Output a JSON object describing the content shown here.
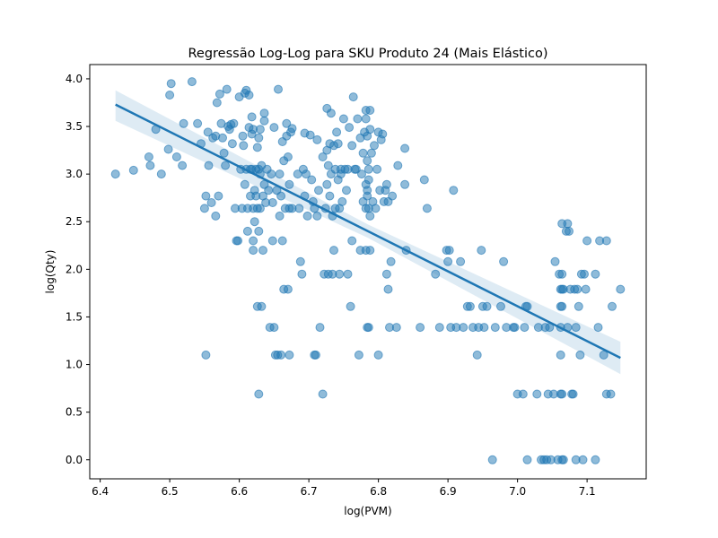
{
  "chart_data": {
    "type": "scatter",
    "title": "Regressão Log-Log para SKU Produto 24 (Mais Elástico)",
    "xlabel": "log(PVM)",
    "ylabel": "log(Qty)",
    "xlim": [
      6.385,
      7.185
    ],
    "ylim": [
      -0.2,
      4.15
    ],
    "xticks": [
      6.4,
      6.5,
      6.6,
      6.7,
      6.8,
      6.9,
      7.0,
      7.1
    ],
    "xtick_labels": [
      "6.4",
      "6.5",
      "6.6",
      "6.7",
      "6.8",
      "6.9",
      "7.0",
      "7.1"
    ],
    "yticks": [
      0.0,
      0.5,
      1.0,
      1.5,
      2.0,
      2.5,
      3.0,
      3.5,
      4.0
    ],
    "ytick_labels": [
      "0.0",
      "0.5",
      "1.0",
      "1.5",
      "2.0",
      "2.5",
      "3.0",
      "3.5",
      "4.0"
    ],
    "grid": false,
    "point_color": "#1f77b4",
    "line_color": "#1f77b4",
    "regression": {
      "x": [
        6.422,
        7.148
      ],
      "y": [
        3.73,
        1.07
      ],
      "ci_start": [
        3.56,
        3.88
      ],
      "ci_end": [
        0.9,
        1.24
      ],
      "ci_mid": [
        2.33,
        2.47
      ]
    },
    "points": [
      [
        6.422,
        3.0
      ],
      [
        6.448,
        3.04
      ],
      [
        6.47,
        3.18
      ],
      [
        6.472,
        3.09
      ],
      [
        6.48,
        3.47
      ],
      [
        6.488,
        3.0
      ],
      [
        6.498,
        3.26
      ],
      [
        6.5,
        3.83
      ],
      [
        6.502,
        3.95
      ],
      [
        6.51,
        3.18
      ],
      [
        6.518,
        3.09
      ],
      [
        6.52,
        3.53
      ],
      [
        6.532,
        3.97
      ],
      [
        6.54,
        3.53
      ],
      [
        6.545,
        3.32
      ],
      [
        6.55,
        2.64
      ],
      [
        6.552,
        2.77
      ],
      [
        6.552,
        1.1
      ],
      [
        6.555,
        3.44
      ],
      [
        6.556,
        3.09
      ],
      [
        6.56,
        2.7
      ],
      [
        6.562,
        3.38
      ],
      [
        6.566,
        3.4
      ],
      [
        6.566,
        2.56
      ],
      [
        6.568,
        3.75
      ],
      [
        6.572,
        3.84
      ],
      [
        6.57,
        2.77
      ],
      [
        6.574,
        3.53
      ],
      [
        6.576,
        3.38
      ],
      [
        6.578,
        3.22
      ],
      [
        6.58,
        3.09
      ],
      [
        6.582,
        3.89
      ],
      [
        6.584,
        3.5
      ],
      [
        6.586,
        3.47
      ],
      [
        6.588,
        3.52
      ],
      [
        6.59,
        3.32
      ],
      [
        6.592,
        3.53
      ],
      [
        6.594,
        2.64
      ],
      [
        6.596,
        2.3
      ],
      [
        6.598,
        2.3
      ],
      [
        6.6,
        3.81
      ],
      [
        6.602,
        3.05
      ],
      [
        6.604,
        2.64
      ],
      [
        6.605,
        3.4
      ],
      [
        6.606,
        3.3
      ],
      [
        6.608,
        3.85
      ],
      [
        6.608,
        2.89
      ],
      [
        6.61,
        3.88
      ],
      [
        6.61,
        3.05
      ],
      [
        6.612,
        2.64
      ],
      [
        6.612,
        2.4
      ],
      [
        6.614,
        3.83
      ],
      [
        6.614,
        3.49
      ],
      [
        6.616,
        3.05
      ],
      [
        6.616,
        2.77
      ],
      [
        6.618,
        3.6
      ],
      [
        6.618,
        3.42
      ],
      [
        6.618,
        3.05
      ],
      [
        6.62,
        3.47
      ],
      [
        6.62,
        2.64
      ],
      [
        6.62,
        2.3
      ],
      [
        6.62,
        2.2
      ],
      [
        6.622,
        2.83
      ],
      [
        6.622,
        2.5
      ],
      [
        6.624,
        3.05
      ],
      [
        6.624,
        2.77
      ],
      [
        6.626,
        3.28
      ],
      [
        6.626,
        2.64
      ],
      [
        6.626,
        1.61
      ],
      [
        6.628,
        3.38
      ],
      [
        6.628,
        3.05
      ],
      [
        6.628,
        2.4
      ],
      [
        6.628,
        0.69
      ],
      [
        6.63,
        3.47
      ],
      [
        6.63,
        3.0
      ],
      [
        6.63,
        2.64
      ],
      [
        6.632,
        3.09
      ],
      [
        6.632,
        1.61
      ],
      [
        6.634,
        2.77
      ],
      [
        6.634,
        2.2
      ],
      [
        6.636,
        3.56
      ],
      [
        6.636,
        2.89
      ],
      [
        6.636,
        3.64
      ],
      [
        6.638,
        2.7
      ],
      [
        6.64,
        3.05
      ],
      [
        6.642,
        2.83
      ],
      [
        6.644,
        1.39
      ],
      [
        6.646,
        3.0
      ],
      [
        6.648,
        2.7
      ],
      [
        6.648,
        2.3
      ],
      [
        6.65,
        3.49
      ],
      [
        6.65,
        1.39
      ],
      [
        6.652,
        1.1
      ],
      [
        6.654,
        2.83
      ],
      [
        6.655,
        1.1
      ],
      [
        6.656,
        3.89
      ],
      [
        6.658,
        3.0
      ],
      [
        6.658,
        2.56
      ],
      [
        6.66,
        2.77
      ],
      [
        6.66,
        1.1
      ],
      [
        6.662,
        3.34
      ],
      [
        6.662,
        2.3
      ],
      [
        6.664,
        3.14
      ],
      [
        6.664,
        1.79
      ],
      [
        6.666,
        2.64
      ],
      [
        6.668,
        3.53
      ],
      [
        6.668,
        3.4
      ],
      [
        6.67,
        3.18
      ],
      [
        6.67,
        1.79
      ],
      [
        6.672,
        2.64
      ],
      [
        6.672,
        2.89
      ],
      [
        6.672,
        1.1
      ],
      [
        6.674,
        3.44
      ],
      [
        6.676,
        3.48
      ],
      [
        6.676,
        2.64
      ],
      [
        6.684,
        3.0
      ],
      [
        6.686,
        2.64
      ],
      [
        6.688,
        2.08
      ],
      [
        6.69,
        1.95
      ],
      [
        6.692,
        3.05
      ],
      [
        6.694,
        3.43
      ],
      [
        6.694,
        2.77
      ],
      [
        6.696,
        3.0
      ],
      [
        6.698,
        2.56
      ],
      [
        6.702,
        3.41
      ],
      [
        6.704,
        2.94
      ],
      [
        6.706,
        2.71
      ],
      [
        6.708,
        1.1
      ],
      [
        6.708,
        2.64
      ],
      [
        6.71,
        1.1
      ],
      [
        6.712,
        3.36
      ],
      [
        6.712,
        2.56
      ],
      [
        6.714,
        2.83
      ],
      [
        6.716,
        1.39
      ],
      [
        6.72,
        3.18
      ],
      [
        6.72,
        0.69
      ],
      [
        6.722,
        1.95
      ],
      [
        6.724,
        2.64
      ],
      [
        6.726,
        3.69
      ],
      [
        6.726,
        3.25
      ],
      [
        6.726,
        2.89
      ],
      [
        6.728,
        3.09
      ],
      [
        6.728,
        1.95
      ],
      [
        6.73,
        3.32
      ],
      [
        6.73,
        2.77
      ],
      [
        6.732,
        3.64
      ],
      [
        6.732,
        3.0
      ],
      [
        6.734,
        2.56
      ],
      [
        6.734,
        1.95
      ],
      [
        6.736,
        3.3
      ],
      [
        6.736,
        2.2
      ],
      [
        6.738,
        3.05
      ],
      [
        6.738,
        2.64
      ],
      [
        6.74,
        3.44
      ],
      [
        6.742,
        3.32
      ],
      [
        6.742,
        2.94
      ],
      [
        6.744,
        2.64
      ],
      [
        6.744,
        1.95
      ],
      [
        6.746,
        3.05
      ],
      [
        6.746,
        3.0
      ],
      [
        6.748,
        2.71
      ],
      [
        6.75,
        3.58
      ],
      [
        6.752,
        3.05
      ],
      [
        6.754,
        2.83
      ],
      [
        6.756,
        3.05
      ],
      [
        6.756,
        1.95
      ],
      [
        6.758,
        3.49
      ],
      [
        6.76,
        1.61
      ],
      [
        6.762,
        3.3
      ],
      [
        6.762,
        2.3
      ],
      [
        6.764,
        3.81
      ],
      [
        6.766,
        3.05
      ],
      [
        6.768,
        3.05
      ],
      [
        6.77,
        3.58
      ],
      [
        6.772,
        1.1
      ],
      [
        6.774,
        3.38
      ],
      [
        6.774,
        2.2
      ],
      [
        6.776,
        3.0
      ],
      [
        6.778,
        2.71
      ],
      [
        6.778,
        3.22
      ],
      [
        6.78,
        3.44
      ],
      [
        6.782,
        3.67
      ],
      [
        6.782,
        3.58
      ],
      [
        6.782,
        2.89
      ],
      [
        6.782,
        2.64
      ],
      [
        6.782,
        2.2
      ],
      [
        6.784,
        3.4
      ],
      [
        6.784,
        3.14
      ],
      [
        6.784,
        2.83
      ],
      [
        6.784,
        2.77
      ],
      [
        6.784,
        1.39
      ],
      [
        6.786,
        3.05
      ],
      [
        6.786,
        2.94
      ],
      [
        6.786,
        2.64
      ],
      [
        6.786,
        1.39
      ],
      [
        6.788,
        3.67
      ],
      [
        6.788,
        3.47
      ],
      [
        6.788,
        2.56
      ],
      [
        6.788,
        2.2
      ],
      [
        6.79,
        3.22
      ],
      [
        6.792,
        2.71
      ],
      [
        6.794,
        3.3
      ],
      [
        6.796,
        2.64
      ],
      [
        6.798,
        3.05
      ],
      [
        6.8,
        3.44
      ],
      [
        6.8,
        1.1
      ],
      [
        6.802,
        2.83
      ],
      [
        6.804,
        3.36
      ],
      [
        6.806,
        3.42
      ],
      [
        6.808,
        2.71
      ],
      [
        6.81,
        2.83
      ],
      [
        6.812,
        2.89
      ],
      [
        6.812,
        1.95
      ],
      [
        6.814,
        2.71
      ],
      [
        6.814,
        1.79
      ],
      [
        6.816,
        1.39
      ],
      [
        6.818,
        2.08
      ],
      [
        6.82,
        2.77
      ],
      [
        6.826,
        1.39
      ],
      [
        6.828,
        3.09
      ],
      [
        6.838,
        3.27
      ],
      [
        6.838,
        2.89
      ],
      [
        6.84,
        2.2
      ],
      [
        6.86,
        1.39
      ],
      [
        6.866,
        2.94
      ],
      [
        6.87,
        2.64
      ],
      [
        6.882,
        1.95
      ],
      [
        6.888,
        1.39
      ],
      [
        6.898,
        2.2
      ],
      [
        6.9,
        2.08
      ],
      [
        6.902,
        2.2
      ],
      [
        6.904,
        1.39
      ],
      [
        6.908,
        2.83
      ],
      [
        6.912,
        1.39
      ],
      [
        6.918,
        2.08
      ],
      [
        6.922,
        1.39
      ],
      [
        6.928,
        1.61
      ],
      [
        6.932,
        1.61
      ],
      [
        6.936,
        1.39
      ],
      [
        6.942,
        1.1
      ],
      [
        6.944,
        1.39
      ],
      [
        6.948,
        2.2
      ],
      [
        6.95,
        1.61
      ],
      [
        6.952,
        1.39
      ],
      [
        6.956,
        1.61
      ],
      [
        6.964,
        0.0
      ],
      [
        6.968,
        1.39
      ],
      [
        6.976,
        1.61
      ],
      [
        6.98,
        2.08
      ],
      [
        6.984,
        1.39
      ],
      [
        6.994,
        1.39
      ],
      [
        6.996,
        1.39
      ],
      [
        7.0,
        0.69
      ],
      [
        7.008,
        0.69
      ],
      [
        7.01,
        1.39
      ],
      [
        7.012,
        1.61
      ],
      [
        7.014,
        1.61
      ],
      [
        7.014,
        0.0
      ],
      [
        7.028,
        0.69
      ],
      [
        7.03,
        1.39
      ],
      [
        7.034,
        0.0
      ],
      [
        7.038,
        0.0
      ],
      [
        7.04,
        1.39
      ],
      [
        7.042,
        0.0
      ],
      [
        7.044,
        0.69
      ],
      [
        7.046,
        1.39
      ],
      [
        7.048,
        0.0
      ],
      [
        7.052,
        0.69
      ],
      [
        7.054,
        2.08
      ],
      [
        7.058,
        0.0
      ],
      [
        7.06,
        1.95
      ],
      [
        7.062,
        1.79
      ],
      [
        7.062,
        1.61
      ],
      [
        7.062,
        1.39
      ],
      [
        7.062,
        1.1
      ],
      [
        7.062,
        0.69
      ],
      [
        7.064,
        2.48
      ],
      [
        7.064,
        1.95
      ],
      [
        7.064,
        1.79
      ],
      [
        7.064,
        1.61
      ],
      [
        7.064,
        0.69
      ],
      [
        7.064,
        0.0
      ],
      [
        7.066,
        1.79
      ],
      [
        7.066,
        0.0
      ],
      [
        7.07,
        2.4
      ],
      [
        7.072,
        1.39
      ],
      [
        7.072,
        2.48
      ],
      [
        7.074,
        2.4
      ],
      [
        7.076,
        1.79
      ],
      [
        7.078,
        0.69
      ],
      [
        7.08,
        0.69
      ],
      [
        7.082,
        1.79
      ],
      [
        7.084,
        1.39
      ],
      [
        7.084,
        0.0
      ],
      [
        7.086,
        1.79
      ],
      [
        7.088,
        1.61
      ],
      [
        7.09,
        1.1
      ],
      [
        7.092,
        1.95
      ],
      [
        7.094,
        0.0
      ],
      [
        7.096,
        1.95
      ],
      [
        7.098,
        1.79
      ],
      [
        7.1,
        2.3
      ],
      [
        7.112,
        1.95
      ],
      [
        7.112,
        0.0
      ],
      [
        7.116,
        1.39
      ],
      [
        7.118,
        2.3
      ],
      [
        7.124,
        1.1
      ],
      [
        7.128,
        2.3
      ],
      [
        7.128,
        0.69
      ],
      [
        7.134,
        0.69
      ],
      [
        7.136,
        1.61
      ],
      [
        7.148,
        1.79
      ]
    ]
  }
}
